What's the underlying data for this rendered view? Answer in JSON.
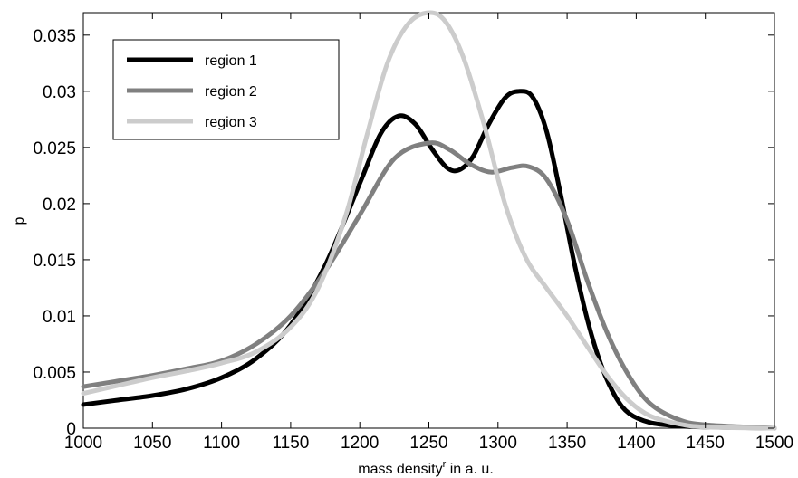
{
  "chart_data": {
    "type": "line",
    "xlabel": "mass density",
    "xlabel_sup": "r",
    "xlabel_suffix": " in a. u.",
    "ylabel": "p",
    "xlim": [
      1000,
      1500
    ],
    "ylim": [
      0,
      0.037
    ],
    "xticks": [
      1000,
      1050,
      1100,
      1150,
      1200,
      1250,
      1300,
      1350,
      1400,
      1450,
      1500
    ],
    "xtick_labels": [
      "1000",
      "1050",
      "1100",
      "1150",
      "1200",
      "1250",
      "1300",
      "1350",
      "1400",
      "1450",
      "1500"
    ],
    "yticks": [
      0,
      0.005,
      0.01,
      0.015,
      0.02,
      0.025,
      0.03,
      0.035
    ],
    "ytick_labels": [
      "0",
      "0.005",
      "0.01",
      "0.015",
      "0.02",
      "0.025",
      "0.03",
      "0.035"
    ],
    "grid": false,
    "legend_position": "top-left",
    "series": [
      {
        "name": "region 1",
        "color": "#000000",
        "points": [
          [
            1000,
            0.0021
          ],
          [
            1025,
            0.0025
          ],
          [
            1050,
            0.0029
          ],
          [
            1075,
            0.0035
          ],
          [
            1100,
            0.0045
          ],
          [
            1125,
            0.0062
          ],
          [
            1150,
            0.0092
          ],
          [
            1175,
            0.0145
          ],
          [
            1200,
            0.0218
          ],
          [
            1215,
            0.0262
          ],
          [
            1228,
            0.0278
          ],
          [
            1240,
            0.0271
          ],
          [
            1252,
            0.0249
          ],
          [
            1263,
            0.0232
          ],
          [
            1272,
            0.023
          ],
          [
            1282,
            0.0242
          ],
          [
            1293,
            0.027
          ],
          [
            1305,
            0.0294
          ],
          [
            1315,
            0.03
          ],
          [
            1325,
            0.0295
          ],
          [
            1335,
            0.0265
          ],
          [
            1345,
            0.021
          ],
          [
            1355,
            0.0148
          ],
          [
            1365,
            0.0095
          ],
          [
            1375,
            0.0055
          ],
          [
            1385,
            0.0028
          ],
          [
            1395,
            0.0013
          ],
          [
            1410,
            0.0005
          ],
          [
            1430,
            0.0002
          ],
          [
            1450,
            0.0001
          ],
          [
            1500,
            0.0
          ]
        ]
      },
      {
        "name": "region 2",
        "color": "#808080",
        "points": [
          [
            1000,
            0.0037
          ],
          [
            1025,
            0.0042
          ],
          [
            1050,
            0.0047
          ],
          [
            1075,
            0.0053
          ],
          [
            1100,
            0.006
          ],
          [
            1125,
            0.0075
          ],
          [
            1150,
            0.01
          ],
          [
            1175,
            0.014
          ],
          [
            1200,
            0.019
          ],
          [
            1225,
            0.024
          ],
          [
            1250,
            0.0254
          ],
          [
            1265,
            0.0248
          ],
          [
            1280,
            0.0235
          ],
          [
            1295,
            0.0228
          ],
          [
            1310,
            0.0232
          ],
          [
            1322,
            0.0233
          ],
          [
            1335,
            0.0222
          ],
          [
            1350,
            0.0185
          ],
          [
            1365,
            0.013
          ],
          [
            1380,
            0.0082
          ],
          [
            1395,
            0.0046
          ],
          [
            1410,
            0.0022
          ],
          [
            1430,
            0.0008
          ],
          [
            1450,
            0.0003
          ],
          [
            1500,
            0.0
          ]
        ]
      },
      {
        "name": "region 3",
        "color": "#cccccc",
        "points": [
          [
            1000,
            0.0031
          ],
          [
            1025,
            0.0038
          ],
          [
            1050,
            0.0045
          ],
          [
            1075,
            0.0051
          ],
          [
            1100,
            0.0058
          ],
          [
            1125,
            0.0068
          ],
          [
            1150,
            0.009
          ],
          [
            1170,
            0.0125
          ],
          [
            1190,
            0.019
          ],
          [
            1205,
            0.026
          ],
          [
            1220,
            0.0325
          ],
          [
            1235,
            0.036
          ],
          [
            1250,
            0.037
          ],
          [
            1262,
            0.0362
          ],
          [
            1275,
            0.033
          ],
          [
            1290,
            0.027
          ],
          [
            1305,
            0.02
          ],
          [
            1320,
            0.0152
          ],
          [
            1335,
            0.0125
          ],
          [
            1350,
            0.01
          ],
          [
            1365,
            0.0072
          ],
          [
            1380,
            0.0045
          ],
          [
            1395,
            0.0024
          ],
          [
            1410,
            0.0011
          ],
          [
            1430,
            0.0004
          ],
          [
            1450,
            0.0001
          ],
          [
            1500,
            0.0
          ]
        ]
      }
    ]
  }
}
